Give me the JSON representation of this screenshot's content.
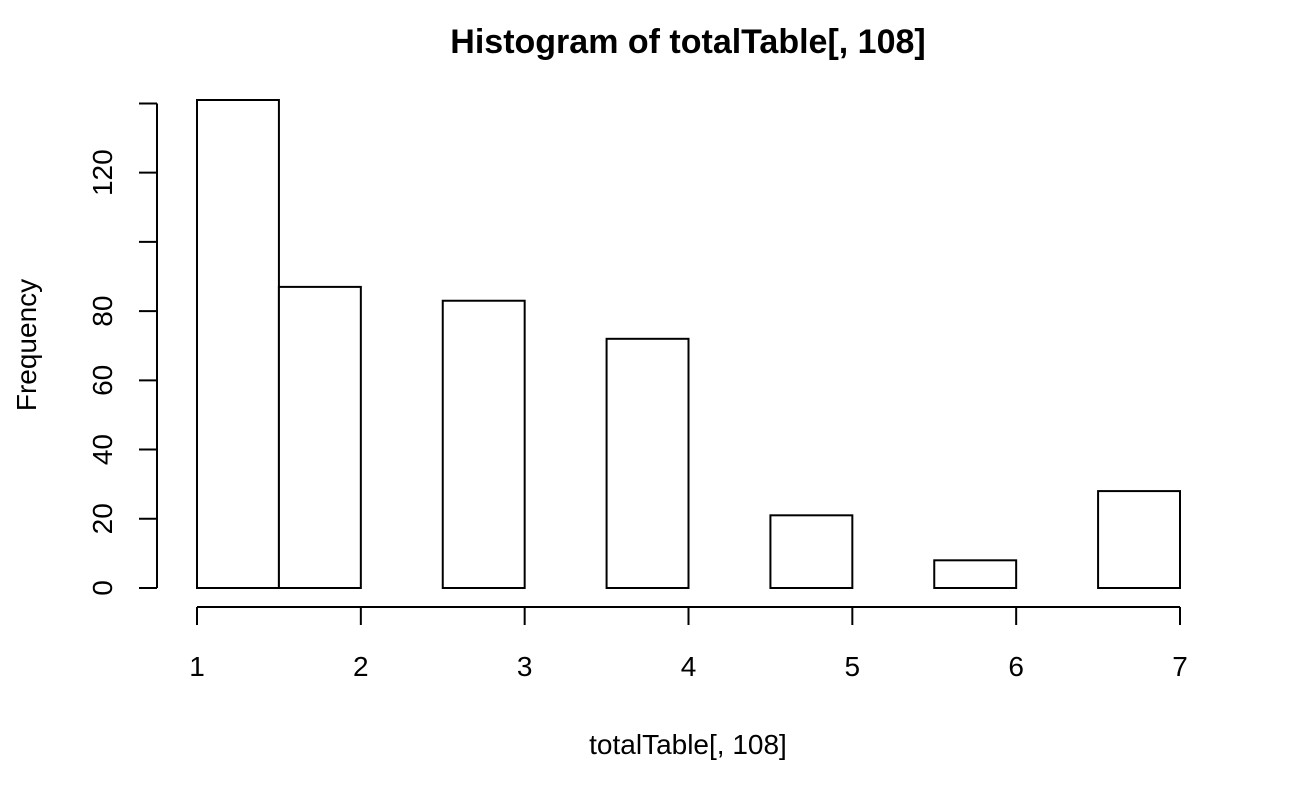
{
  "chart_data": {
    "type": "bar",
    "title": "Histogram of totalTable[, 108]",
    "xlabel": "totalTable[, 108]",
    "ylabel": "Frequency",
    "bins": [
      {
        "start": 1.0,
        "end": 1.5,
        "count": 141
      },
      {
        "start": 1.5,
        "end": 2.0,
        "count": 87
      },
      {
        "start": 2.0,
        "end": 2.5,
        "count": 0
      },
      {
        "start": 2.5,
        "end": 3.0,
        "count": 83
      },
      {
        "start": 3.0,
        "end": 3.5,
        "count": 0
      },
      {
        "start": 3.5,
        "end": 4.0,
        "count": 72
      },
      {
        "start": 4.0,
        "end": 4.5,
        "count": 0
      },
      {
        "start": 4.5,
        "end": 5.0,
        "count": 21
      },
      {
        "start": 5.0,
        "end": 5.5,
        "count": 0
      },
      {
        "start": 5.5,
        "end": 6.0,
        "count": 8
      },
      {
        "start": 6.0,
        "end": 6.5,
        "count": 0
      },
      {
        "start": 6.5,
        "end": 7.0,
        "count": 28
      }
    ],
    "xticks": [
      1,
      2,
      3,
      4,
      5,
      6,
      7
    ],
    "xtick_labels": [
      "1",
      "2",
      "3",
      "4",
      "5",
      "6",
      "7"
    ],
    "yticks": [
      0,
      20,
      40,
      60,
      80,
      100,
      120,
      140
    ],
    "ytick_labels": [
      "0",
      "20",
      "40",
      "60",
      "80",
      "",
      "120",
      ""
    ],
    "xlim": [
      1,
      7
    ],
    "ylim": [
      0,
      141
    ],
    "grid": false
  }
}
